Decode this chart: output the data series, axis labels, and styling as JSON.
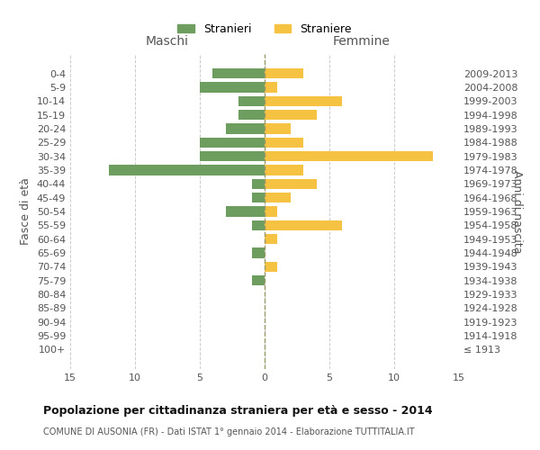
{
  "age_groups": [
    "100+",
    "95-99",
    "90-94",
    "85-89",
    "80-84",
    "75-79",
    "70-74",
    "65-69",
    "60-64",
    "55-59",
    "50-54",
    "45-49",
    "40-44",
    "35-39",
    "30-34",
    "25-29",
    "20-24",
    "15-19",
    "10-14",
    "5-9",
    "0-4"
  ],
  "birth_years": [
    "≤ 1913",
    "1914-1918",
    "1919-1923",
    "1924-1928",
    "1929-1933",
    "1934-1938",
    "1939-1943",
    "1944-1948",
    "1949-1953",
    "1954-1958",
    "1959-1963",
    "1964-1968",
    "1969-1973",
    "1974-1978",
    "1979-1983",
    "1984-1988",
    "1989-1993",
    "1994-1998",
    "1999-2003",
    "2004-2008",
    "2009-2013"
  ],
  "males": [
    0,
    0,
    0,
    0,
    0,
    1,
    0,
    1,
    0,
    1,
    3,
    1,
    1,
    12,
    5,
    5,
    3,
    2,
    2,
    5,
    4
  ],
  "females": [
    0,
    0,
    0,
    0,
    0,
    0,
    1,
    0,
    1,
    6,
    1,
    2,
    4,
    3,
    13,
    3,
    2,
    4,
    6,
    1,
    3
  ],
  "male_color": "#6e9e5f",
  "female_color": "#f5c242",
  "background_color": "#ffffff",
  "grid_color": "#cccccc",
  "title": "Popolazione per cittadinanza straniera per età e sesso - 2014",
  "subtitle": "COMUNE DI AUSONIA (FR) - Dati ISTAT 1° gennaio 2014 - Elaborazione TUTTITALIA.IT",
  "xlabel_left": "Maschi",
  "xlabel_right": "Femmine",
  "ylabel_left": "Fasce di età",
  "ylabel_right": "Anni di nascita",
  "legend_male": "Stranieri",
  "legend_female": "Straniere",
  "xlim": 15,
  "bar_height": 0.75
}
